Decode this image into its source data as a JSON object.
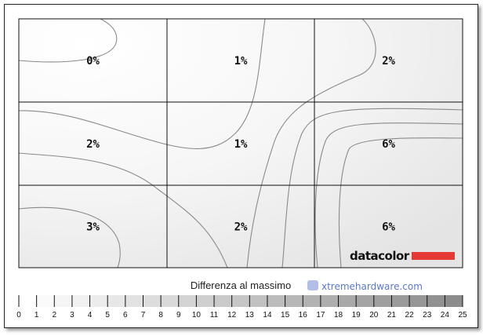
{
  "chart_data": {
    "type": "heatmap",
    "grid": {
      "rows": 3,
      "cols": 3
    },
    "cells": [
      [
        "0%",
        "1%",
        "2%"
      ],
      [
        "2%",
        "1%",
        "6%"
      ],
      [
        "3%",
        "2%",
        "6%"
      ]
    ],
    "values": [
      [
        0,
        1,
        2
      ],
      [
        2,
        1,
        6
      ],
      [
        3,
        2,
        6
      ]
    ],
    "scale": {
      "title": "Differenza al massimo",
      "min": 0,
      "max": 25,
      "ticks": [
        "0",
        "1",
        "2",
        "3",
        "4",
        "5",
        "6",
        "7",
        "8",
        "9",
        "10",
        "11",
        "12",
        "13",
        "14",
        "15",
        "16",
        "17",
        "18",
        "19",
        "20",
        "21",
        "22",
        "23",
        "24",
        "25"
      ],
      "color_low": "#ffffff",
      "color_high": "#8c8c8c"
    }
  },
  "logo": {
    "text": "datacolor",
    "accent": "#e53935"
  },
  "watermark": {
    "text": "xtremehardware.com"
  }
}
